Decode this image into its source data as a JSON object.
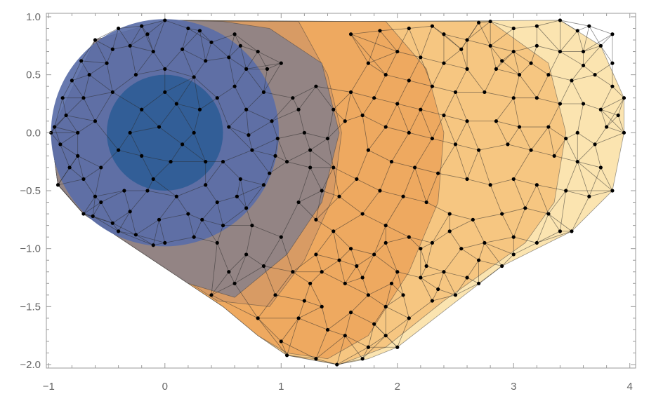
{
  "chart_data": {
    "type": "scatter",
    "title": "",
    "xlabel": "",
    "ylabel": "",
    "xlim": [
      -1.02,
      4.05
    ],
    "ylim": [
      -2.03,
      1.03
    ],
    "x_ticks": [
      -1,
      0,
      1,
      2,
      3,
      4
    ],
    "x_tick_labels": [
      "−1",
      "0",
      "1",
      "2",
      "3",
      "4"
    ],
    "y_ticks": [
      1.0,
      0.5,
      0.0,
      -0.5,
      -1.0,
      -1.5,
      -2.0
    ],
    "y_tick_labels": [
      "1.0",
      "0.5",
      "0.0",
      "−0.5",
      "−1.0",
      "−1.5",
      "−2.0"
    ],
    "grid": false,
    "regions": [
      {
        "shape": "hull",
        "points": [
          [
            -0.98,
            0.0
          ],
          [
            -0.6,
            0.8
          ],
          [
            0.0,
            0.97
          ],
          [
            1.6,
            0.96
          ],
          [
            3.4,
            0.97
          ],
          [
            3.75,
            0.75
          ],
          [
            3.95,
            0.3
          ],
          [
            3.95,
            0.0
          ],
          [
            3.85,
            -0.5
          ],
          [
            3.5,
            -0.85
          ],
          [
            2.9,
            -1.15
          ],
          [
            2.0,
            -1.85
          ],
          [
            1.75,
            -1.95
          ],
          [
            1.48,
            -2.0
          ],
          [
            1.05,
            -1.92
          ],
          [
            0.8,
            -1.75
          ],
          [
            0.5,
            -1.5
          ],
          [
            -0.7,
            -0.7
          ],
          [
            -0.92,
            -0.45
          ]
        ],
        "color": "#fbe3ac"
      },
      {
        "shape": "hull",
        "points": [
          [
            -0.98,
            0.0
          ],
          [
            -0.6,
            0.8
          ],
          [
            0.0,
            0.97
          ],
          [
            1.5,
            0.96
          ],
          [
            2.8,
            0.96
          ],
          [
            3.3,
            0.6
          ],
          [
            3.45,
            0.0
          ],
          [
            3.35,
            -0.6
          ],
          [
            3.1,
            -0.95
          ],
          [
            2.4,
            -1.45
          ],
          [
            1.9,
            -1.85
          ],
          [
            1.5,
            -2.0
          ],
          [
            1.05,
            -1.92
          ],
          [
            0.8,
            -1.75
          ],
          [
            0.5,
            -1.5
          ],
          [
            -0.7,
            -0.7
          ],
          [
            -0.92,
            -0.45
          ]
        ],
        "color": "#f6c47e"
      },
      {
        "shape": "hull",
        "points": [
          [
            -0.98,
            0.0
          ],
          [
            -0.6,
            0.8
          ],
          [
            0.0,
            0.97
          ],
          [
            1.3,
            0.96
          ],
          [
            1.9,
            0.96
          ],
          [
            2.25,
            0.55
          ],
          [
            2.4,
            0.0
          ],
          [
            2.35,
            -0.6
          ],
          [
            2.1,
            -1.2
          ],
          [
            1.75,
            -1.75
          ],
          [
            1.4,
            -1.95
          ],
          [
            1.05,
            -1.9
          ],
          [
            0.8,
            -1.75
          ],
          [
            0.5,
            -1.5
          ],
          [
            -0.7,
            -0.7
          ],
          [
            -0.92,
            -0.45
          ]
        ],
        "color": "#eda85e"
      },
      {
        "shape": "hull",
        "points": [
          [
            -0.98,
            0.0
          ],
          [
            -0.6,
            0.8
          ],
          [
            0.0,
            0.97
          ],
          [
            0.6,
            0.96
          ],
          [
            1.15,
            0.96
          ],
          [
            1.4,
            0.5
          ],
          [
            1.52,
            0.0
          ],
          [
            1.45,
            -0.55
          ],
          [
            1.2,
            -1.1
          ],
          [
            0.9,
            -1.5
          ],
          [
            0.45,
            -1.45
          ],
          [
            -0.7,
            -0.7
          ],
          [
            -0.92,
            -0.45
          ]
        ],
        "color": "#d69a64"
      },
      {
        "shape": "hull",
        "points": [
          [
            -0.98,
            0.0
          ],
          [
            -0.6,
            0.8
          ],
          [
            0.0,
            0.97
          ],
          [
            0.5,
            0.96
          ],
          [
            0.9,
            0.9
          ],
          [
            1.35,
            0.6
          ],
          [
            1.5,
            0.0
          ],
          [
            1.35,
            -0.6
          ],
          [
            1.05,
            -1.05
          ],
          [
            0.6,
            -1.42
          ],
          [
            0.2,
            -1.3
          ],
          [
            -0.7,
            -0.7
          ],
          [
            -0.92,
            -0.45
          ]
        ],
        "color": "#8f8386"
      },
      {
        "shape": "circle",
        "center": [
          0.0,
          0.0
        ],
        "radius": 0.98,
        "color": "#5a6ea8"
      },
      {
        "shape": "circle",
        "center": [
          0.0,
          0.0
        ],
        "radius": 0.5,
        "color": "#2f5c96"
      }
    ],
    "points": [
      [
        -0.9,
        -0.1
      ],
      [
        -0.95,
        0.05
      ],
      [
        -0.98,
        0.0
      ],
      [
        -0.92,
        -0.45
      ],
      [
        -0.7,
        -0.7
      ],
      [
        -0.6,
        0.8
      ],
      [
        -0.4,
        0.9
      ],
      [
        0.0,
        0.97
      ],
      [
        -0.8,
        0.45
      ],
      [
        -0.7,
        0.3
      ],
      [
        -0.85,
        0.15
      ],
      [
        -0.75,
        -0.2
      ],
      [
        -0.6,
        -0.55
      ],
      [
        -0.5,
        0.6
      ],
      [
        -0.3,
        0.75
      ],
      [
        -0.15,
        0.85
      ],
      [
        0.2,
        0.9
      ],
      [
        0.4,
        0.78
      ],
      [
        0.55,
        0.65
      ],
      [
        0.7,
        0.55
      ],
      [
        0.85,
        0.35
      ],
      [
        0.92,
        0.1
      ],
      [
        0.95,
        -0.2
      ],
      [
        0.85,
        -0.45
      ],
      [
        0.7,
        -0.65
      ],
      [
        0.5,
        -0.8
      ],
      [
        0.25,
        -0.9
      ],
      [
        0.0,
        -0.95
      ],
      [
        -0.25,
        -0.88
      ],
      [
        -0.45,
        -0.78
      ],
      [
        -0.35,
        -0.5
      ],
      [
        -0.55,
        -0.3
      ],
      [
        -0.6,
        0.1
      ],
      [
        -0.45,
        0.35
      ],
      [
        -0.25,
        0.5
      ],
      [
        0.0,
        0.55
      ],
      [
        0.25,
        0.48
      ],
      [
        0.45,
        0.3
      ],
      [
        0.55,
        0.05
      ],
      [
        0.5,
        -0.25
      ],
      [
        0.35,
        -0.45
      ],
      [
        0.1,
        -0.55
      ],
      [
        -0.15,
        -0.5
      ],
      [
        -0.4,
        -0.15
      ],
      [
        -0.2,
        0.2
      ],
      [
        0.1,
        0.25
      ],
      [
        0.25,
        0.0
      ],
      [
        0.05,
        -0.25
      ],
      [
        -0.2,
        -0.2
      ],
      [
        -0.05,
        0.05
      ],
      [
        0.15,
        -0.1
      ],
      [
        -0.3,
        0.0
      ],
      [
        0.3,
        0.2
      ],
      [
        0.0,
        0.35
      ],
      [
        -0.1,
        -0.4
      ],
      [
        0.35,
        -0.25
      ],
      [
        0.6,
        0.85
      ],
      [
        0.8,
        0.7
      ],
      [
        1.0,
        0.6
      ],
      [
        1.1,
        0.3
      ],
      [
        1.2,
        0.0
      ],
      [
        1.25,
        -0.3
      ],
      [
        1.15,
        -0.6
      ],
      [
        1.0,
        -0.9
      ],
      [
        0.85,
        -1.15
      ],
      [
        0.6,
        -1.3
      ],
      [
        0.4,
        -1.4
      ],
      [
        0.8,
        -1.6
      ],
      [
        1.0,
        -1.8
      ],
      [
        1.05,
        -1.92
      ],
      [
        1.3,
        -1.95
      ],
      [
        1.48,
        -2.0
      ],
      [
        1.7,
        -1.95
      ],
      [
        1.75,
        -1.85
      ],
      [
        1.9,
        -1.75
      ],
      [
        2.0,
        -1.85
      ],
      [
        1.4,
        -1.7
      ],
      [
        1.6,
        -1.55
      ],
      [
        1.2,
        -1.45
      ],
      [
        1.35,
        -1.2
      ],
      [
        1.55,
        -1.3
      ],
      [
        1.75,
        -1.4
      ],
      [
        1.9,
        -1.5
      ],
      [
        2.1,
        -1.6
      ],
      [
        2.3,
        -1.45
      ],
      [
        2.5,
        -1.4
      ],
      [
        2.7,
        -1.3
      ],
      [
        2.9,
        -1.15
      ],
      [
        2.4,
        -1.2
      ],
      [
        2.2,
        -1.25
      ],
      [
        2.0,
        -1.2
      ],
      [
        1.8,
        -1.05
      ],
      [
        1.6,
        -1.0
      ],
      [
        1.45,
        -0.85
      ],
      [
        1.3,
        -0.75
      ],
      [
        1.5,
        -0.55
      ],
      [
        1.7,
        -0.7
      ],
      [
        1.9,
        -0.8
      ],
      [
        2.1,
        -0.9
      ],
      [
        2.3,
        -0.95
      ],
      [
        2.55,
        -1.0
      ],
      [
        2.75,
        -0.95
      ],
      [
        3.0,
        -0.9
      ],
      [
        3.2,
        -0.95
      ],
      [
        3.4,
        -0.85
      ],
      [
        3.5,
        -0.85
      ],
      [
        3.3,
        -0.7
      ],
      [
        3.1,
        -0.65
      ],
      [
        2.9,
        -0.7
      ],
      [
        2.65,
        -0.75
      ],
      [
        2.45,
        -0.7
      ],
      [
        2.25,
        -0.6
      ],
      [
        2.05,
        -0.55
      ],
      [
        1.85,
        -0.5
      ],
      [
        1.65,
        -0.4
      ],
      [
        1.45,
        -0.3
      ],
      [
        1.4,
        -0.05
      ],
      [
        1.55,
        0.1
      ],
      [
        1.75,
        -0.15
      ],
      [
        1.95,
        -0.25
      ],
      [
        2.15,
        -0.3
      ],
      [
        2.35,
        -0.35
      ],
      [
        2.6,
        -0.4
      ],
      [
        2.8,
        -0.45
      ],
      [
        3.0,
        -0.4
      ],
      [
        3.2,
        -0.45
      ],
      [
        3.45,
        -0.5
      ],
      [
        3.65,
        -0.55
      ],
      [
        3.85,
        -0.5
      ],
      [
        3.75,
        -0.3
      ],
      [
        3.55,
        -0.25
      ],
      [
        3.35,
        -0.2
      ],
      [
        3.15,
        -0.15
      ],
      [
        2.95,
        -0.1
      ],
      [
        2.7,
        -0.15
      ],
      [
        2.5,
        -0.1
      ],
      [
        2.3,
        -0.05
      ],
      [
        2.1,
        0.0
      ],
      [
        1.9,
        0.05
      ],
      [
        1.7,
        0.15
      ],
      [
        1.6,
        0.35
      ],
      [
        1.8,
        0.3
      ],
      [
        2.0,
        0.25
      ],
      [
        2.2,
        0.2
      ],
      [
        2.4,
        0.15
      ],
      [
        2.6,
        0.1
      ],
      [
        2.85,
        0.1
      ],
      [
        3.05,
        0.05
      ],
      [
        3.3,
        0.05
      ],
      [
        3.55,
        0.0
      ],
      [
        3.8,
        0.05
      ],
      [
        3.95,
        0.0
      ],
      [
        3.95,
        0.3
      ],
      [
        3.85,
        0.4
      ],
      [
        3.75,
        0.2
      ],
      [
        3.6,
        0.25
      ],
      [
        3.4,
        0.25
      ],
      [
        3.2,
        0.3
      ],
      [
        3.0,
        0.3
      ],
      [
        2.75,
        0.35
      ],
      [
        2.5,
        0.35
      ],
      [
        2.3,
        0.4
      ],
      [
        2.1,
        0.45
      ],
      [
        1.9,
        0.5
      ],
      [
        1.75,
        0.6
      ],
      [
        2.0,
        0.7
      ],
      [
        2.2,
        0.65
      ],
      [
        2.4,
        0.6
      ],
      [
        2.6,
        0.55
      ],
      [
        2.85,
        0.55
      ],
      [
        3.05,
        0.5
      ],
      [
        3.3,
        0.5
      ],
      [
        3.5,
        0.45
      ],
      [
        3.7,
        0.5
      ],
      [
        3.75,
        0.75
      ],
      [
        3.6,
        0.7
      ],
      [
        3.4,
        0.7
      ],
      [
        3.2,
        0.75
      ],
      [
        3.0,
        0.7
      ],
      [
        2.8,
        0.75
      ],
      [
        2.6,
        0.8
      ],
      [
        2.4,
        0.85
      ],
      [
        2.7,
        0.95
      ],
      [
        2.8,
        0.96
      ],
      [
        3.0,
        0.9
      ],
      [
        3.2,
        0.92
      ],
      [
        3.4,
        0.97
      ],
      [
        3.55,
        0.88
      ],
      [
        3.85,
        0.6
      ],
      [
        3.9,
        0.15
      ],
      [
        3.7,
        -0.1
      ],
      [
        3.45,
        -0.05
      ],
      [
        2.2,
        -1.0
      ],
      [
        1.95,
        -1.3
      ],
      [
        1.65,
        -1.15
      ],
      [
        1.3,
        -1.05
      ],
      [
        1.1,
        -1.2
      ],
      [
        0.95,
        -1.4
      ],
      [
        1.15,
        -1.6
      ],
      [
        1.35,
        -1.5
      ],
      [
        1.55,
        -1.75
      ],
      [
        1.8,
        -1.65
      ],
      [
        2.05,
        -1.4
      ],
      [
        2.25,
        -1.15
      ],
      [
        2.45,
        -0.85
      ],
      [
        1.05,
        -0.25
      ],
      [
        1.15,
        0.2
      ],
      [
        1.3,
        0.4
      ],
      [
        1.45,
        0.2
      ],
      [
        1.25,
        -0.15
      ],
      [
        1.35,
        -0.5
      ],
      [
        0.7,
        0.2
      ],
      [
        0.75,
        -0.15
      ],
      [
        0.65,
        -0.4
      ],
      [
        0.45,
        -0.6
      ],
      [
        0.2,
        -0.7
      ],
      [
        -0.05,
        -0.75
      ],
      [
        -0.3,
        -0.68
      ],
      [
        -0.7,
        -0.4
      ],
      [
        -0.75,
        0.0
      ],
      [
        -0.65,
        0.5
      ],
      [
        -0.45,
        0.72
      ],
      [
        -0.1,
        0.7
      ],
      [
        0.15,
        0.72
      ],
      [
        0.35,
        0.62
      ],
      [
        0.6,
        0.4
      ],
      [
        0.72,
        -0.02
      ],
      [
        0.62,
        -0.55
      ],
      [
        0.32,
        -0.75
      ],
      [
        -0.55,
        -0.6
      ],
      [
        -0.82,
        -0.3
      ],
      [
        -0.88,
        0.3
      ],
      [
        -0.72,
        0.62
      ],
      [
        -0.2,
        0.92
      ],
      [
        0.3,
        0.88
      ],
      [
        0.65,
        0.75
      ],
      [
        0.88,
        0.55
      ],
      [
        0.97,
        -0.05
      ],
      [
        0.9,
        -0.35
      ],
      [
        0.75,
        -0.8
      ],
      [
        0.45,
        -0.95
      ],
      [
        -0.1,
        -0.97
      ],
      [
        -0.4,
        -0.85
      ],
      [
        -0.62,
        -0.72
      ],
      [
        1.6,
        0.85
      ],
      [
        1.85,
        0.88
      ],
      [
        2.1,
        0.9
      ],
      [
        2.3,
        0.92
      ],
      [
        2.55,
        0.72
      ],
      [
        2.9,
        0.62
      ],
      [
        3.15,
        0.6
      ],
      [
        3.6,
        0.58
      ],
      [
        3.85,
        0.85
      ],
      [
        3.65,
        0.92
      ],
      [
        1.9,
        -0.95
      ],
      [
        2.7,
        -1.1
      ],
      [
        3.0,
        -1.05
      ],
      [
        2.6,
        -1.25
      ],
      [
        2.35,
        -1.35
      ],
      [
        1.7,
        -1.25
      ],
      [
        1.5,
        -1.1
      ],
      [
        1.25,
        -1.3
      ],
      [
        0.7,
        -1.05
      ],
      [
        0.55,
        -1.2
      ]
    ]
  }
}
